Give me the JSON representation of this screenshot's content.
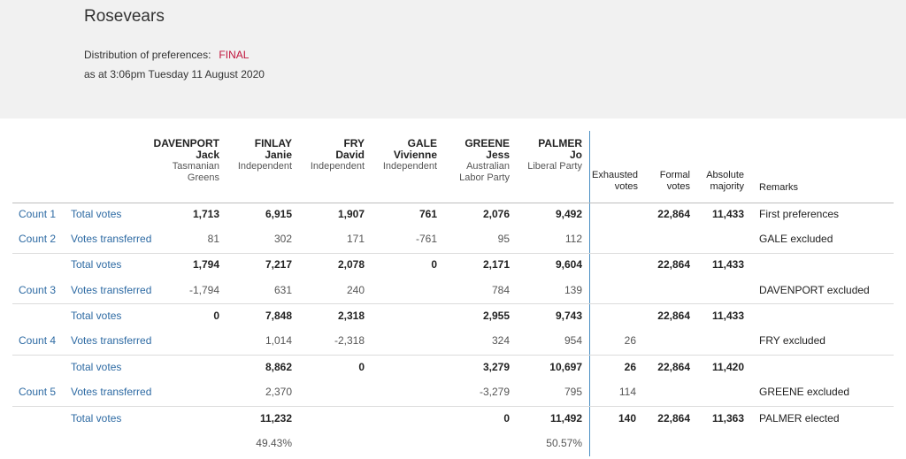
{
  "title": "Rosevears",
  "distribution_label": "Distribution of preferences:",
  "status": "FINAL",
  "as_at": "as at 3:06pm Tuesday 11 August 2020",
  "candidates": [
    {
      "surname": "DAVENPORT",
      "given": "Jack",
      "party_line1": "Tasmanian",
      "party_line2": "Greens"
    },
    {
      "surname": "FINLAY",
      "given": "Janie",
      "party_line1": "Independent",
      "party_line2": ""
    },
    {
      "surname": "FRY",
      "given": "David",
      "party_line1": "Independent",
      "party_line2": ""
    },
    {
      "surname": "GALE",
      "given": "Vivienne",
      "party_line1": "Independent",
      "party_line2": ""
    },
    {
      "surname": "GREENE",
      "given": "Jess",
      "party_line1": "Australian",
      "party_line2": "Labor Party"
    },
    {
      "surname": "PALMER",
      "given": "Jo",
      "party_line1": "Liberal Party",
      "party_line2": ""
    }
  ],
  "headers": {
    "exhausted_1": "Exhausted",
    "exhausted_2": "votes",
    "formal_1": "Formal",
    "formal_2": "votes",
    "absolute_1": "Absolute",
    "absolute_2": "majority",
    "remarks": "Remarks"
  },
  "rows": [
    {
      "count": "Count 1",
      "label": "Total votes",
      "c": [
        "1,713",
        "6,915",
        "1,907",
        "761",
        "2,076",
        "9,492"
      ],
      "exh": "",
      "formal": "22,864",
      "abs": "11,433",
      "remark": "First preferences"
    },
    {
      "count": "Count 2",
      "label": "Votes transferred",
      "c": [
        "81",
        "302",
        "171",
        "-761",
        "95",
        "112"
      ],
      "exh": "",
      "formal": "",
      "abs": "",
      "remark": "GALE excluded"
    },
    {
      "count": "",
      "label": "Total votes",
      "c": [
        "1,794",
        "7,217",
        "2,078",
        "0",
        "2,171",
        "9,604"
      ],
      "exh": "",
      "formal": "22,864",
      "abs": "11,433",
      "remark": ""
    },
    {
      "count": "Count 3",
      "label": "Votes transferred",
      "c": [
        "-1,794",
        "631",
        "240",
        "",
        "784",
        "139"
      ],
      "exh": "",
      "formal": "",
      "abs": "",
      "remark": "DAVENPORT excluded"
    },
    {
      "count": "",
      "label": "Total votes",
      "c": [
        "0",
        "7,848",
        "2,318",
        "",
        "2,955",
        "9,743"
      ],
      "exh": "",
      "formal": "22,864",
      "abs": "11,433",
      "remark": ""
    },
    {
      "count": "Count 4",
      "label": "Votes transferred",
      "c": [
        "",
        "1,014",
        "-2,318",
        "",
        "324",
        "954"
      ],
      "exh": "26",
      "formal": "",
      "abs": "",
      "remark": "FRY excluded"
    },
    {
      "count": "",
      "label": "Total votes",
      "c": [
        "",
        "8,862",
        "0",
        "",
        "3,279",
        "10,697"
      ],
      "exh": "26",
      "formal": "22,864",
      "abs": "11,420",
      "remark": ""
    },
    {
      "count": "Count 5",
      "label": "Votes transferred",
      "c": [
        "",
        "2,370",
        "",
        "",
        "-3,279",
        "795"
      ],
      "exh": "114",
      "formal": "",
      "abs": "",
      "remark": "GREENE excluded"
    },
    {
      "count": "",
      "label": "Total votes",
      "c": [
        "",
        "11,232",
        "",
        "",
        "0",
        "11,492"
      ],
      "exh": "140",
      "formal": "22,864",
      "abs": "11,363",
      "remark": "PALMER elected"
    }
  ],
  "percentages": {
    "finlay": "49.43%",
    "palmer": "50.57%"
  }
}
